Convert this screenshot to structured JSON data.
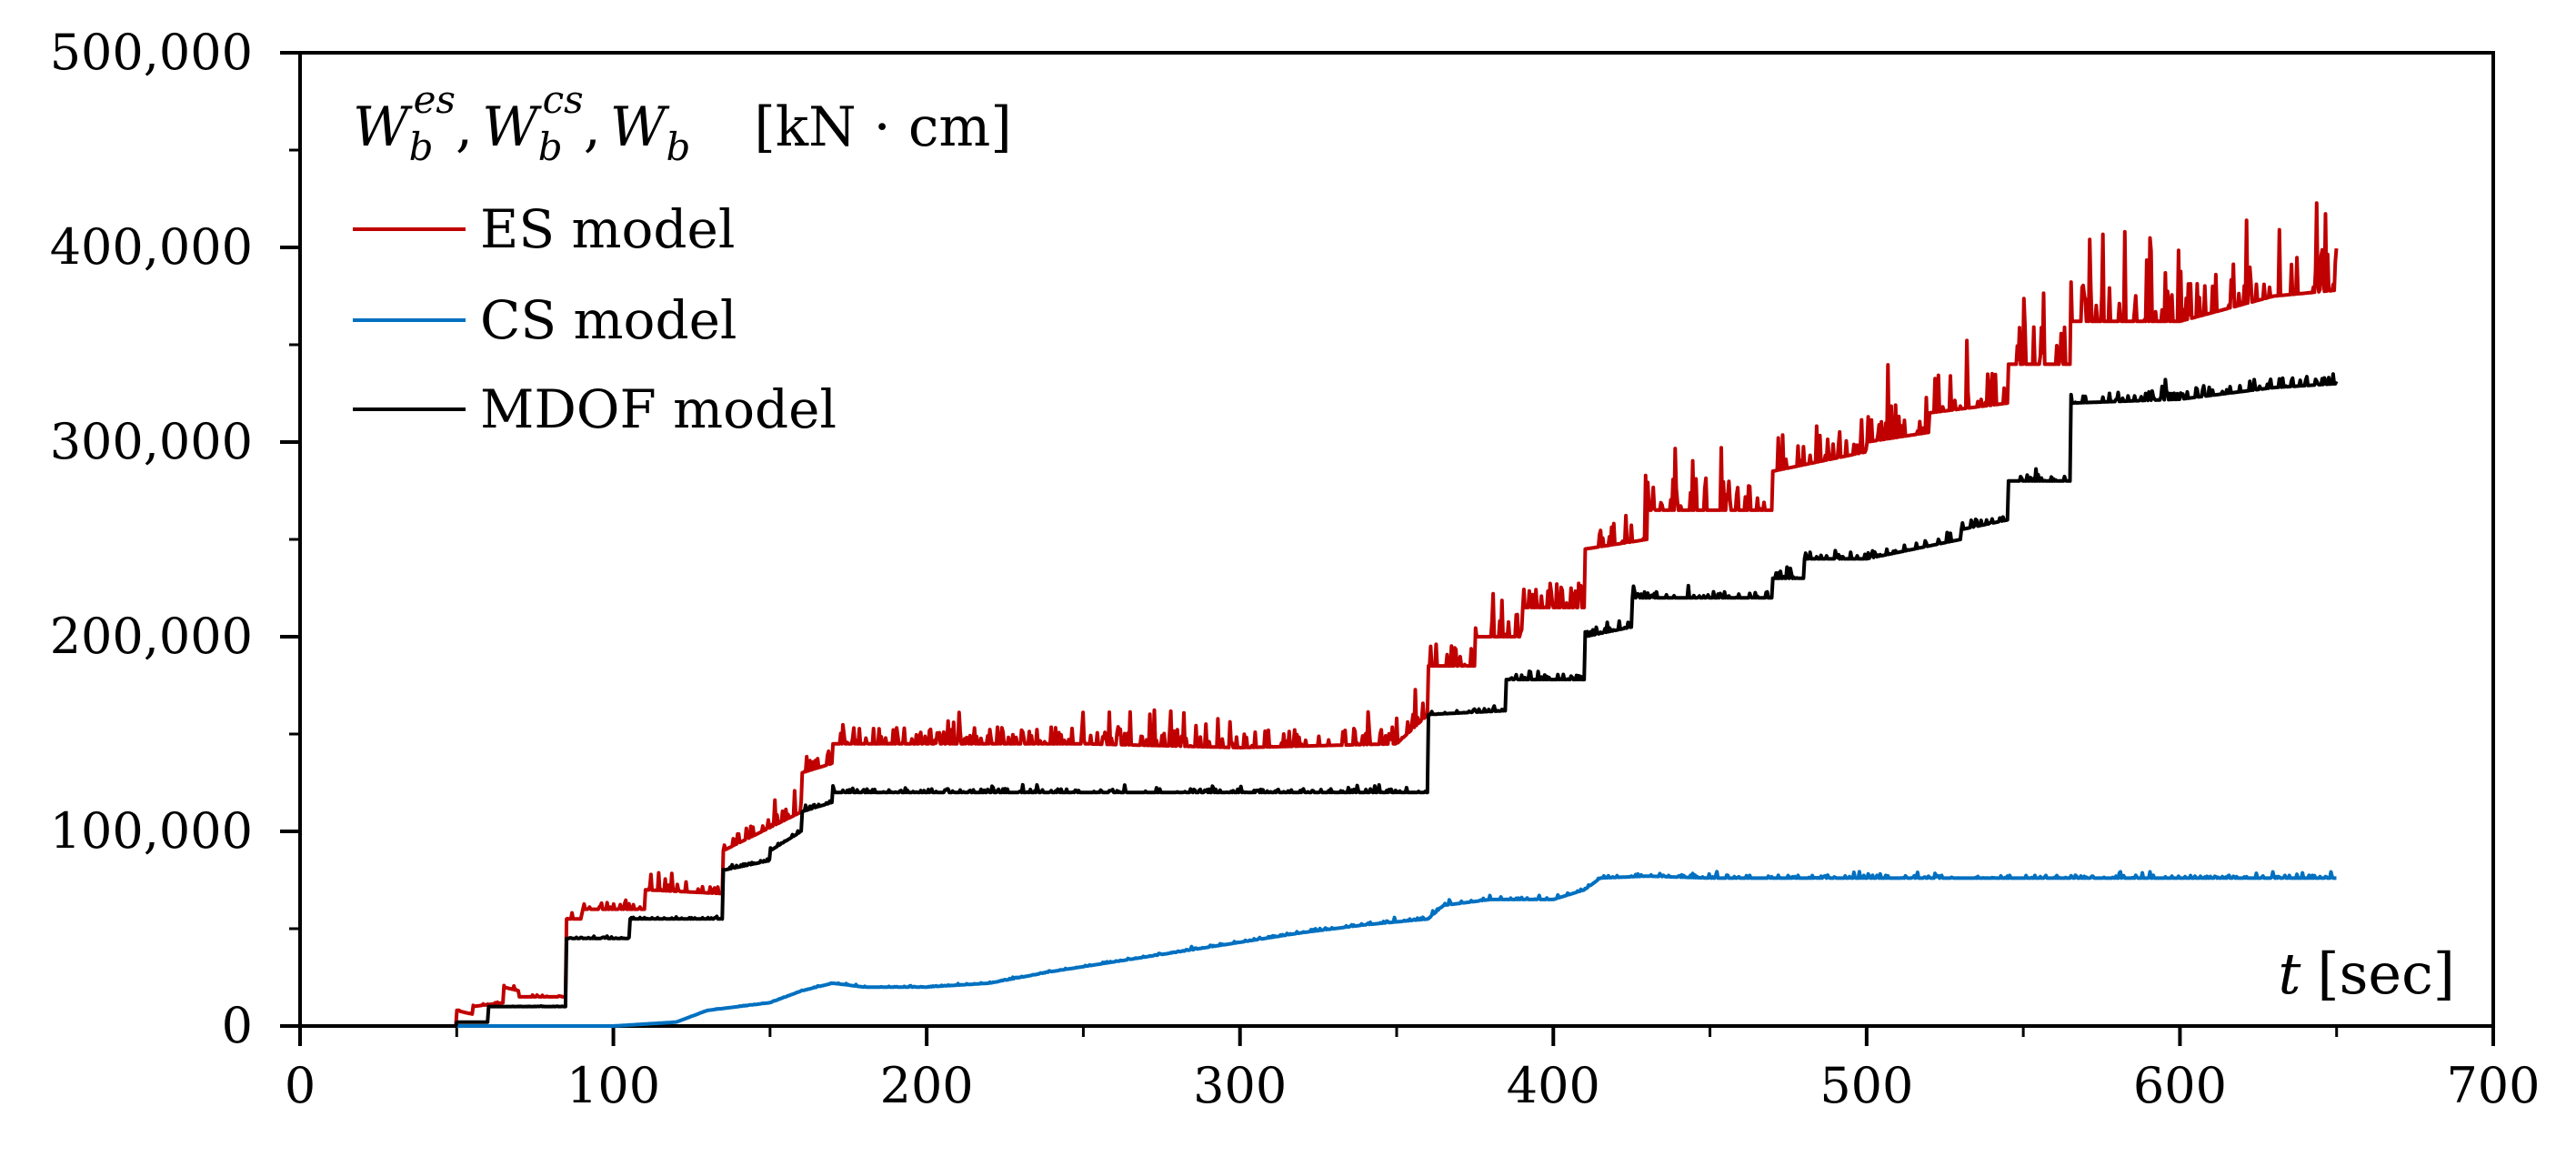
{
  "chart_data": {
    "type": "line",
    "title": "",
    "xlabel": {
      "symbol": "t",
      "unit": "[sec]"
    },
    "ylabel": {
      "parts": [
        {
          "base": "W",
          "sub": "b",
          "sup": "es"
        },
        {
          "sep": ","
        },
        {
          "base": "W",
          "sub": "b",
          "sup": "cs"
        },
        {
          "sep": ","
        },
        {
          "base": "W",
          "sub": "b",
          "sup": ""
        }
      ],
      "unit": "[kN · cm]"
    },
    "xlim": [
      0,
      700
    ],
    "ylim": [
      0,
      500000
    ],
    "x_ticks": [
      0,
      100,
      200,
      300,
      400,
      500,
      600,
      700
    ],
    "x_tick_labels": [
      "0",
      "100",
      "200",
      "300",
      "400",
      "500",
      "600",
      "700"
    ],
    "y_ticks": [
      0,
      100000,
      200000,
      300000,
      400000,
      500000
    ],
    "y_tick_labels": [
      "0",
      "100,000",
      "200,000",
      "300,000",
      "400,000",
      "500,000"
    ],
    "legend_position": "top-left",
    "series": [
      {
        "name": "ES model",
        "color": "#c00000",
        "x": [
          0,
          50,
          50,
          55,
          55,
          65,
          65,
          70,
          70,
          85,
          85,
          90,
          90,
          110,
          110,
          135,
          135,
          160,
          160,
          170,
          170,
          200,
          250,
          300,
          350,
          360,
          360,
          375,
          375,
          390,
          390,
          410,
          410,
          430,
          430,
          470,
          470,
          500,
          500,
          520,
          520,
          545,
          545,
          565,
          565,
          600,
          630,
          650
        ],
        "values": [
          0,
          0,
          8000,
          6000,
          10000,
          12000,
          20000,
          18000,
          15000,
          15000,
          55000,
          55000,
          60000,
          60000,
          70000,
          68000,
          90000,
          110000,
          130000,
          135000,
          145000,
          145000,
          145000,
          143000,
          145000,
          160000,
          185000,
          185000,
          200000,
          200000,
          215000,
          215000,
          245000,
          250000,
          265000,
          265000,
          285000,
          295000,
          300000,
          305000,
          315000,
          320000,
          340000,
          340000,
          362000,
          362000,
          375000,
          378000
        ],
        "noise": 0.06
      },
      {
        "name": "CS model",
        "color": "#0070c0",
        "x": [
          0,
          50,
          100,
          120,
          125,
          130,
          140,
          150,
          160,
          170,
          180,
          200,
          220,
          240,
          260,
          280,
          300,
          320,
          340,
          360,
          365,
          380,
          400,
          410,
          415,
          430,
          450,
          500,
          550,
          600,
          650
        ],
        "values": [
          0,
          0,
          0,
          2000,
          5000,
          8000,
          10000,
          12000,
          18000,
          22000,
          20000,
          20000,
          22000,
          28000,
          33000,
          38000,
          43000,
          48000,
          52000,
          55000,
          62000,
          65000,
          65000,
          70000,
          76000,
          77000,
          76000,
          76000,
          76000,
          76000,
          76000
        ],
        "noise": 0.02
      },
      {
        "name": "MDOF model",
        "color": "#000000",
        "x": [
          0,
          50,
          50,
          60,
          60,
          85,
          85,
          90,
          90,
          105,
          105,
          135,
          135,
          150,
          150,
          160,
          160,
          170,
          170,
          200,
          300,
          360,
          360,
          385,
          385,
          410,
          410,
          425,
          425,
          450,
          450,
          470,
          470,
          480,
          480,
          500,
          500,
          530,
          530,
          545,
          545,
          565,
          565,
          600,
          630,
          650
        ],
        "values": [
          0,
          0,
          2000,
          2000,
          10000,
          10000,
          45000,
          45000,
          45000,
          45000,
          55000,
          55000,
          80000,
          85000,
          90000,
          100000,
          110000,
          115000,
          120000,
          120000,
          120000,
          120000,
          160000,
          162000,
          178000,
          178000,
          200000,
          205000,
          220000,
          220000,
          220000,
          220000,
          230000,
          230000,
          240000,
          240000,
          240000,
          250000,
          255000,
          260000,
          280000,
          280000,
          320000,
          322000,
          328000,
          330000
        ],
        "noise": 0.015
      }
    ]
  }
}
